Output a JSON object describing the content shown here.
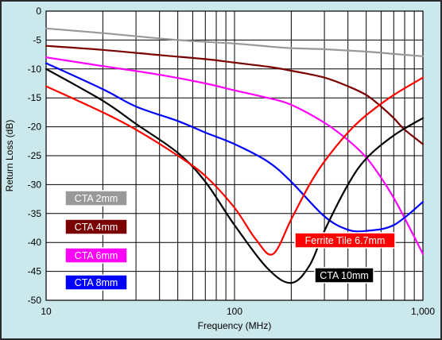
{
  "chart_data": {
    "type": "line",
    "title": "",
    "xlabel": "Frequency (MHz)",
    "ylabel": "Return Loss (dB)",
    "x_scale": "log",
    "xlim": [
      10,
      1000
    ],
    "ylim": [
      -50,
      0
    ],
    "x_tick_labels": [
      "10",
      "100",
      "1,000"
    ],
    "x_tick_values": [
      10,
      100,
      1000
    ],
    "y_ticks": [
      0,
      -5,
      -10,
      -15,
      -20,
      -25,
      -30,
      -35,
      -40,
      -45,
      -50
    ],
    "grid": true,
    "background_color": "#cbe8ec",
    "series": [
      {
        "name": "CTA 2mm",
        "color": "#999999",
        "x": [
          10,
          20,
          50,
          100,
          150,
          200,
          300,
          500,
          700,
          1000
        ],
        "y": [
          -3,
          -3.8,
          -5,
          -5.6,
          -6.1,
          -6.4,
          -6.6,
          -7.0,
          -7.4,
          -7.8
        ]
      },
      {
        "name": "CTA 4mm",
        "color": "#7a0000",
        "x": [
          10,
          20,
          40,
          70,
          100,
          150,
          200,
          300,
          400,
          500,
          600,
          700,
          800,
          1000
        ],
        "y": [
          -6,
          -6.7,
          -7.6,
          -8.3,
          -8.9,
          -9.6,
          -10.3,
          -11.5,
          -13.0,
          -14.5,
          -16.5,
          -18.5,
          -20.5,
          -23.0
        ]
      },
      {
        "name": "CTA 6mm",
        "color": "#ff00ff",
        "x": [
          10,
          20,
          40,
          70,
          100,
          150,
          200,
          300,
          400,
          500,
          600,
          700,
          800,
          1000
        ],
        "y": [
          -8,
          -9.5,
          -11,
          -12.5,
          -13.7,
          -15.0,
          -16.2,
          -19.3,
          -22.3,
          -25.3,
          -28.8,
          -32.3,
          -35.8,
          -42.0
        ]
      },
      {
        "name": "CTA 8mm",
        "color": "#0000ff",
        "x": [
          10,
          20,
          30,
          50,
          70,
          100,
          150,
          200,
          300,
          400,
          500,
          700,
          1000
        ],
        "y": [
          -9,
          -13.5,
          -16.5,
          -19.0,
          -21.0,
          -23.0,
          -26.0,
          -29.5,
          -35.5,
          -37.8,
          -38.0,
          -37.0,
          -33.0
        ]
      },
      {
        "name": "CTA 10mm",
        "color": "#000000",
        "x": [
          10,
          20,
          30,
          50,
          70,
          100,
          150,
          200,
          250,
          300,
          400,
          500,
          700,
          1000
        ],
        "y": [
          -10,
          -15.5,
          -19.5,
          -24.5,
          -29.5,
          -37.0,
          -44.5,
          -47.0,
          -44.0,
          -38.0,
          -30.0,
          -25.5,
          -21.5,
          -18.5
        ]
      },
      {
        "name": "Ferrite Tile 6.7mm",
        "color": "#ff0000",
        "x": [
          10,
          20,
          30,
          50,
          70,
          100,
          130,
          160,
          200,
          250,
          300,
          400,
          500,
          700,
          1000
        ],
        "y": [
          -13,
          -17.5,
          -20.5,
          -25.0,
          -28.5,
          -34.0,
          -39.5,
          -42.0,
          -36.0,
          -30.0,
          -26.0,
          -21.0,
          -18.0,
          -14.5,
          -11.5
        ]
      }
    ],
    "labels": [
      {
        "text": "CTA 2mm",
        "bg": "#999999",
        "fg": "#ffffff"
      },
      {
        "text": "CTA 4mm",
        "bg": "#7a0000",
        "fg": "#ffffff"
      },
      {
        "text": "CTA 6mm",
        "bg": "#ff00ff",
        "fg": "#ffffff"
      },
      {
        "text": "CTA 8mm",
        "bg": "#0000ff",
        "fg": "#ffffff"
      },
      {
        "text": "Ferrite Tile 6.7mm",
        "bg": "#ff0000",
        "fg": "#ffffff"
      },
      {
        "text": "CTA 10mm",
        "bg": "#000000",
        "fg": "#ffffff"
      }
    ]
  }
}
